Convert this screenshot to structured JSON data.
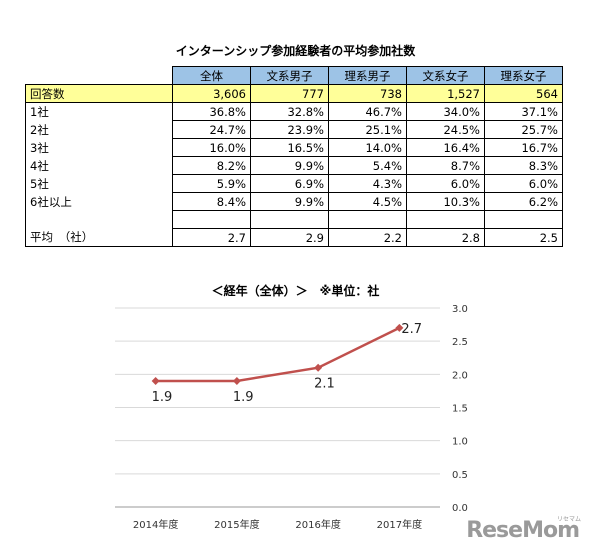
{
  "table": {
    "title": "インターンシップ参加経験者の平均参加社数",
    "columns": [
      "全体",
      "文系男子",
      "理系男子",
      "文系女子",
      "理系女子"
    ],
    "rows": [
      {
        "label": "回答数",
        "values": [
          "3,606",
          "777",
          "738",
          "1,527",
          "564"
        ]
      },
      {
        "label": "1社",
        "values": [
          "36.8%",
          "32.8%",
          "46.7%",
          "34.0%",
          "37.1%"
        ]
      },
      {
        "label": "2社",
        "values": [
          "24.7%",
          "23.9%",
          "25.1%",
          "24.5%",
          "25.7%"
        ]
      },
      {
        "label": "3社",
        "values": [
          "16.0%",
          "16.5%",
          "14.0%",
          "16.4%",
          "16.7%"
        ]
      },
      {
        "label": "4社",
        "values": [
          "8.2%",
          "9.9%",
          "5.4%",
          "8.7%",
          "8.3%"
        ]
      },
      {
        "label": "5社",
        "values": [
          "5.9%",
          "6.9%",
          "4.3%",
          "6.0%",
          "6.0%"
        ]
      },
      {
        "label": "6社以上",
        "values": [
          "8.4%",
          "9.9%",
          "4.5%",
          "10.3%",
          "6.2%"
        ]
      },
      {
        "label": "",
        "values": [
          "",
          "",
          "",
          "",
          ""
        ]
      },
      {
        "label": "平均　（社）",
        "values": [
          "2.7",
          "2.9",
          "2.2",
          "2.8",
          "2.5"
        ]
      }
    ]
  },
  "chart_data": {
    "type": "line",
    "title": "＜経年（全体）＞　※単位：社",
    "categories": [
      "2014年度",
      "2015年度",
      "2016年度",
      "2017年度"
    ],
    "series": [
      {
        "values": [
          1.9,
          1.9,
          2.1,
          2.7
        ]
      }
    ],
    "data_labels": [
      "1.9",
      "1.9",
      "2.1",
      "2.7"
    ],
    "ylim": [
      0.0,
      3.0
    ],
    "yticks": [
      "0.0",
      "0.5",
      "1.0",
      "1.5",
      "2.0",
      "2.5",
      "3.0"
    ],
    "y_axis_side": "right",
    "grid": true,
    "legend": "none",
    "line_color": "#c0504d"
  },
  "watermark": {
    "text": "ReseMom",
    "sub": "リセマム"
  }
}
